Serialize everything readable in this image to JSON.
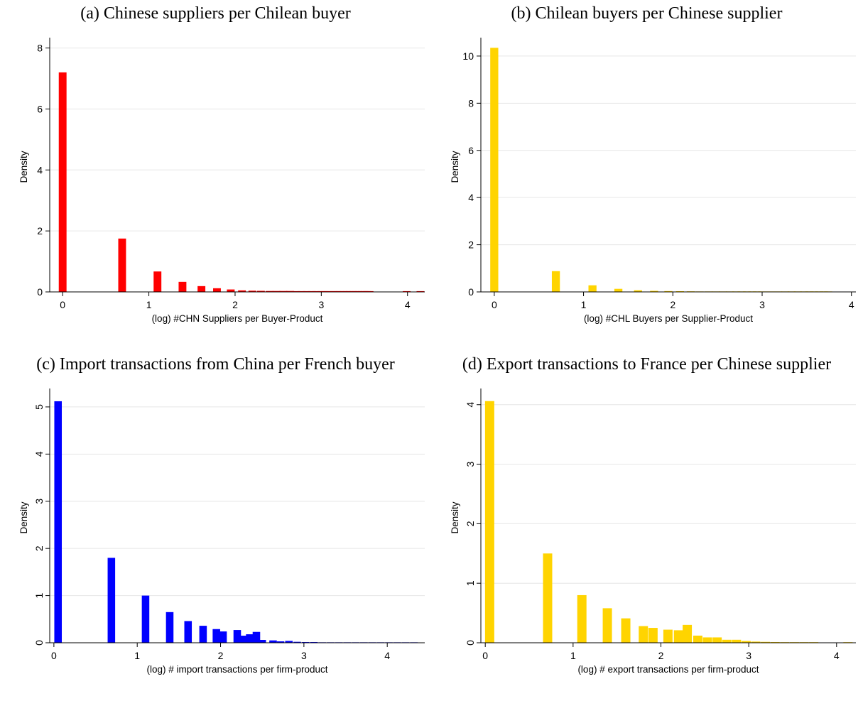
{
  "chart_data": [
    {
      "panel_title": "(a) Chinese suppliers per Chilean buyer",
      "type": "bar",
      "xlabel": "(log) #CHN Suppliers per Buyer-Product",
      "ylabel": "Density",
      "xlim": [
        -0.15,
        4.2
      ],
      "ylim": [
        0,
        8.2
      ],
      "xticks": [
        0,
        1,
        2,
        3,
        4
      ],
      "yticks": [
        0,
        2,
        4,
        6,
        8
      ],
      "ytick_rotated": false,
      "color": "#ff0000",
      "bin_width": 0.09,
      "grid": true,
      "x": [
        0.0,
        0.69,
        1.1,
        1.39,
        1.61,
        1.79,
        1.95,
        2.08,
        2.2,
        2.3,
        2.4,
        2.48,
        2.56,
        2.64,
        2.71,
        2.77,
        2.83,
        2.89,
        2.94,
        3.0,
        3.04,
        3.09,
        3.14,
        3.18,
        3.22,
        3.26,
        3.3,
        3.33,
        3.37,
        3.4,
        3.43,
        3.47,
        3.5,
        3.53,
        3.56,
        3.99,
        4.15
      ],
      "values": [
        7.2,
        1.75,
        0.67,
        0.33,
        0.19,
        0.12,
        0.08,
        0.05,
        0.04,
        0.035,
        0.03,
        0.03,
        0.03,
        0.03,
        0.025,
        0.025,
        0.025,
        0.025,
        0.025,
        0.025,
        0.025,
        0.025,
        0.025,
        0.025,
        0.025,
        0.025,
        0.025,
        0.025,
        0.025,
        0.025,
        0.025,
        0.025,
        0.025,
        0.025,
        0.025,
        0.025,
        0.025
      ]
    },
    {
      "panel_title": "(b) Chilean buyers per Chinese supplier",
      "type": "bar",
      "xlabel": "(log) #CHL Buyers per Supplier-Product",
      "ylabel": "Density",
      "xlim": [
        -0.15,
        4.05
      ],
      "ylim": [
        0,
        10.6
      ],
      "xticks": [
        0,
        1,
        2,
        3,
        4
      ],
      "yticks": [
        0,
        2,
        4,
        6,
        8,
        10
      ],
      "ytick_rotated": false,
      "color": "#ffd400",
      "bin_width": 0.09,
      "grid": true,
      "x": [
        0.0,
        0.69,
        1.1,
        1.39,
        1.61,
        1.79,
        1.95,
        2.08,
        2.2,
        2.3,
        2.4,
        2.48,
        2.56,
        2.64,
        2.71,
        2.77,
        2.83,
        2.89,
        2.94,
        3.0,
        3.09,
        3.18,
        3.26,
        3.33,
        3.4,
        3.47,
        3.53,
        3.58,
        3.64,
        3.69,
        3.74
      ],
      "values": [
        10.35,
        0.88,
        0.28,
        0.13,
        0.07,
        0.045,
        0.035,
        0.03,
        0.025,
        0.02,
        0.02,
        0.02,
        0.02,
        0.02,
        0.02,
        0.02,
        0.02,
        0.02,
        0.02,
        0.02,
        0.02,
        0.02,
        0.02,
        0.02,
        0.02,
        0.02,
        0.02,
        0.02,
        0.02,
        0.02,
        0.02
      ]
    },
    {
      "panel_title": "(c) Import transactions from China per French buyer",
      "type": "bar",
      "xlabel": "(log) # import transactions per firm-product",
      "ylabel": "Density",
      "xlim": [
        -0.05,
        4.45
      ],
      "ylim": [
        0,
        5.3
      ],
      "xticks": [
        0,
        1,
        2,
        3,
        4
      ],
      "yticks": [
        0,
        1,
        2,
        3,
        4,
        5
      ],
      "ytick_rotated": true,
      "color": "#0000ff",
      "bin_width": 0.09,
      "grid": true,
      "x": [
        0.05,
        0.69,
        1.1,
        1.39,
        1.61,
        1.79,
        1.95,
        2.03,
        2.2,
        2.28,
        2.35,
        2.43,
        2.5,
        2.63,
        2.72,
        2.82,
        2.92,
        3.02,
        3.12,
        3.22,
        3.32,
        3.42,
        3.52,
        3.62,
        3.72,
        3.82,
        3.92,
        4.02,
        4.12,
        4.22,
        4.32
      ],
      "values": [
        5.12,
        1.8,
        1.0,
        0.65,
        0.46,
        0.36,
        0.29,
        0.24,
        0.27,
        0.15,
        0.18,
        0.23,
        0.06,
        0.05,
        0.03,
        0.04,
        0.02,
        0.015,
        0.015,
        0.01,
        0.01,
        0.01,
        0.01,
        0.01,
        0.01,
        0.01,
        0.01,
        0.01,
        0.01,
        0.01,
        0.01
      ]
    },
    {
      "panel_title": "(d) Export transactions to France per Chinese supplier",
      "type": "bar",
      "xlabel": "(log) # export transactions per firm-product",
      "ylabel": "Density",
      "xlim": [
        -0.05,
        4.22
      ],
      "ylim": [
        0,
        4.2
      ],
      "xticks": [
        0,
        1,
        2,
        3,
        4
      ],
      "yticks": [
        0,
        1,
        2,
        3,
        4
      ],
      "ytick_rotated": true,
      "color": "#ffd400",
      "bin_width": 0.105,
      "grid": true,
      "x": [
        0.05,
        0.71,
        1.1,
        1.39,
        1.6,
        1.8,
        1.91,
        2.08,
        2.2,
        2.3,
        2.42,
        2.53,
        2.64,
        2.75,
        2.86,
        2.97,
        3.08,
        3.19,
        3.3,
        3.41,
        3.52,
        3.63,
        3.74,
        4.13
      ],
      "values": [
        4.06,
        1.5,
        0.8,
        0.58,
        0.41,
        0.28,
        0.25,
        0.22,
        0.21,
        0.3,
        0.12,
        0.09,
        0.09,
        0.05,
        0.05,
        0.03,
        0.02,
        0.015,
        0.012,
        0.01,
        0.01,
        0.01,
        0.01,
        0.01
      ]
    }
  ]
}
